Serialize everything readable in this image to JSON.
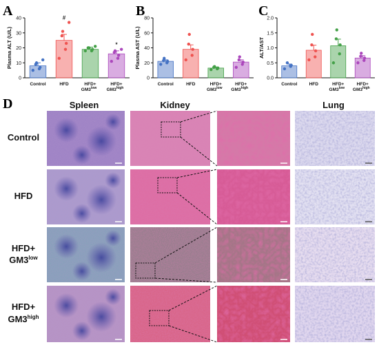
{
  "figure": {
    "panel_labels": [
      "A",
      "B",
      "C",
      "D"
    ],
    "columns": [
      "Spleen",
      "Kidney",
      "Lung"
    ],
    "rows": [
      {
        "line1": "Control",
        "line2": "",
        "sup": ""
      },
      {
        "line1": "HFD",
        "line2": "",
        "sup": ""
      },
      {
        "line1": "HFD+",
        "line2": "GM3",
        "sup": "low"
      },
      {
        "line1": "HFD+",
        "line2": "GM3",
        "sup": "high"
      }
    ],
    "colors": {
      "control": "#4472c4",
      "hfd": "#ef5350",
      "low": "#43a047",
      "high": "#ab47bc"
    }
  },
  "chart_data": [
    {
      "type": "bar",
      "panel": "A",
      "ylabel": "Plasma ALT (U/L)",
      "ylim": [
        0,
        40
      ],
      "yticks": [
        0,
        10,
        20,
        30,
        40
      ],
      "categories": [
        "Control",
        "HFD",
        "HFD+ GM3low",
        "HFD+ GM3high"
      ],
      "values": [
        8,
        25,
        19,
        16
      ],
      "errors": [
        2,
        4,
        1.5,
        2
      ],
      "annotations": [
        {
          "category": 1,
          "text": "#"
        },
        {
          "category": 3,
          "text": "*"
        }
      ],
      "points": [
        [
          5,
          6,
          7,
          9,
          10,
          12
        ],
        [
          13,
          19,
          23,
          28,
          31,
          37
        ],
        [
          18,
          18,
          19,
          20,
          20,
          21
        ],
        [
          11,
          13,
          15,
          17,
          18,
          19
        ]
      ]
    },
    {
      "type": "bar",
      "panel": "B",
      "ylabel": "Plasma AST (U/L)",
      "ylim": [
        0,
        80
      ],
      "yticks": [
        0,
        20,
        40,
        60,
        80
      ],
      "categories": [
        "Control",
        "HFD",
        "HFD+ GM3low",
        "HFD+ GM3high"
      ],
      "values": [
        22,
        38,
        13,
        21
      ],
      "errors": [
        2,
        6,
        1.5,
        3
      ],
      "annotations": [],
      "points": [
        [
          18,
          20,
          22,
          23,
          26
        ],
        [
          24,
          30,
          38,
          45,
          58
        ],
        [
          11,
          12,
          13,
          14,
          15
        ],
        [
          14,
          18,
          21,
          24,
          28
        ]
      ]
    },
    {
      "type": "bar",
      "panel": "C",
      "ylabel": "ALT/AST",
      "ylim": [
        0,
        2.0
      ],
      "yticks": [
        0.0,
        0.5,
        1.0,
        1.5,
        2.0
      ],
      "ytick_labels": [
        "0.0",
        "0.5",
        "1.0",
        "1.5",
        "2.0"
      ],
      "categories": [
        "Control",
        "HFD",
        "HFD+ GM3low",
        "HFD+ GM3high"
      ],
      "values": [
        0.4,
        0.92,
        1.07,
        0.66
      ],
      "errors": [
        0.06,
        0.17,
        0.22,
        0.08
      ],
      "annotations": [],
      "points": [
        [
          0.3,
          0.38,
          0.42,
          0.5
        ],
        [
          0.6,
          0.7,
          0.9,
          1.1,
          1.45
        ],
        [
          0.5,
          0.8,
          1.1,
          1.3,
          1.6
        ],
        [
          0.5,
          0.58,
          0.66,
          0.72,
          0.82
        ]
      ]
    }
  ]
}
